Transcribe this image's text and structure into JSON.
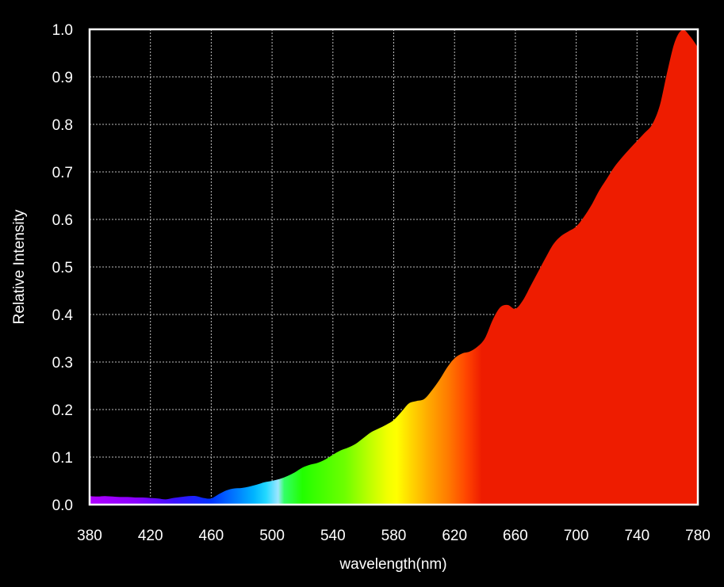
{
  "chart_data": {
    "type": "area",
    "title": "",
    "xlabel": "wavelength(nm)",
    "ylabel": "Relative Intensity",
    "xlim": [
      380,
      780
    ],
    "ylim": [
      0.0,
      1.0
    ],
    "grid": true,
    "legend": "none",
    "x_ticks": [
      "380",
      "420",
      "460",
      "500",
      "540",
      "580",
      "620",
      "660",
      "700",
      "740",
      "780"
    ],
    "y_ticks": [
      "0.0",
      "0.1",
      "0.2",
      "0.3",
      "0.4",
      "0.5",
      "0.6",
      "0.7",
      "0.8",
      "0.9",
      "1.0"
    ],
    "fill": "visible-spectrum color gradient",
    "series": [
      {
        "x": [
          380,
          385,
          390,
          395,
          400,
          405,
          410,
          415,
          420,
          425,
          430,
          435,
          440,
          445,
          450,
          455,
          460,
          465,
          470,
          475,
          480,
          485,
          490,
          495,
          500,
          505,
          510,
          515,
          520,
          525,
          530,
          535,
          540,
          545,
          550,
          555,
          560,
          565,
          570,
          575,
          580,
          585,
          590,
          595,
          600,
          605,
          610,
          615,
          620,
          625,
          630,
          635,
          640,
          645,
          650,
          655,
          660,
          665,
          670,
          675,
          680,
          685,
          690,
          695,
          700,
          705,
          710,
          715,
          720,
          725,
          730,
          735,
          740,
          745,
          750,
          755,
          760,
          765,
          770,
          775,
          780
        ],
        "y": [
          0.018,
          0.017,
          0.018,
          0.017,
          0.016,
          0.016,
          0.015,
          0.015,
          0.014,
          0.013,
          0.011,
          0.014,
          0.016,
          0.018,
          0.018,
          0.014,
          0.013,
          0.022,
          0.03,
          0.034,
          0.035,
          0.038,
          0.042,
          0.047,
          0.05,
          0.054,
          0.06,
          0.068,
          0.078,
          0.084,
          0.088,
          0.095,
          0.105,
          0.114,
          0.12,
          0.128,
          0.14,
          0.152,
          0.16,
          0.168,
          0.178,
          0.195,
          0.213,
          0.218,
          0.222,
          0.24,
          0.262,
          0.288,
          0.308,
          0.318,
          0.322,
          0.332,
          0.35,
          0.388,
          0.415,
          0.42,
          0.412,
          0.43,
          0.46,
          0.49,
          0.52,
          0.548,
          0.565,
          0.575,
          0.585,
          0.605,
          0.63,
          0.66,
          0.685,
          0.71,
          0.73,
          0.748,
          0.765,
          0.782,
          0.8,
          0.84,
          0.912,
          0.975,
          0.999,
          0.985,
          0.962
        ]
      }
    ]
  }
}
